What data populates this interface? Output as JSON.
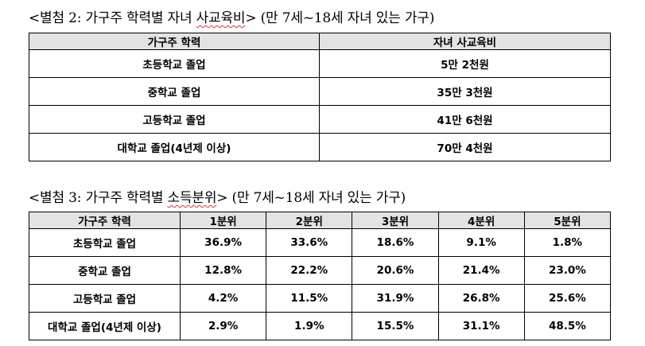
{
  "table1": {
    "caption_prefix": "<별첨 2: 가구주 학력별 자녀 ",
    "caption_word": "사교육비",
    "caption_suffix": "> (만 7세~18세 자녀 있는 가구)",
    "headers": [
      "가구주 학력",
      "자녀 사교육비"
    ],
    "rows": [
      {
        "education": "초등학교 졸업",
        "value": "5만 2천원"
      },
      {
        "education": "중학교 졸업",
        "value": "35만 3천원"
      },
      {
        "education": "고등학교 졸업",
        "value": "41만 6천원"
      },
      {
        "education": "대학교 졸업(4년제 이상)",
        "value": "70만 4천원"
      }
    ]
  },
  "table2": {
    "caption_prefix": "<별첨 3: 가구주 학력별 ",
    "caption_word": "소득분위",
    "caption_suffix": "> (만 7세~18세 자녀 있는 가구)",
    "headers": [
      "가구주 학력",
      "1분위",
      "2분위",
      "3분위",
      "4분위",
      "5분위"
    ],
    "rows": [
      {
        "education": "초등학교 졸업",
        "values": [
          "36.9%",
          "33.6%",
          "18.6%",
          "9.1%",
          "1.8%"
        ]
      },
      {
        "education": "중학교 졸업",
        "values": [
          "12.8%",
          "22.2%",
          "20.6%",
          "21.4%",
          "23.0%"
        ]
      },
      {
        "education": "고등학교 졸업",
        "values": [
          "4.2%",
          "11.5%",
          "31.9%",
          "26.8%",
          "25.6%"
        ]
      },
      {
        "education": "대학교 졸업(4년제 이상)",
        "values": [
          "2.9%",
          "1.9%",
          "15.5%",
          "31.1%",
          "48.5%"
        ]
      }
    ]
  }
}
